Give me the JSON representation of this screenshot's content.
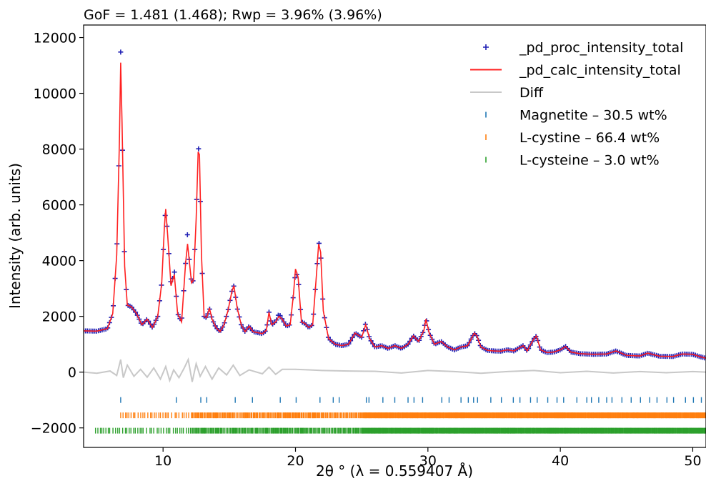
{
  "chart_data": {
    "type": "line",
    "title": "GoF = 1.481 (1.468); Rwp = 3.96% (3.96%)",
    "xlabel": "2θ ° (λ = 0.559407 Å)",
    "ylabel": "Intensity (arb. units)",
    "xlim": [
      4.0,
      51.0
    ],
    "ylim": [
      -2700,
      12450
    ],
    "xticks": [
      10,
      20,
      30,
      40,
      50
    ],
    "yticks": [
      -2000,
      0,
      2000,
      4000,
      6000,
      8000,
      10000,
      12000
    ],
    "ytick_labels": [
      "−2000",
      "0",
      "2000",
      "4000",
      "6000",
      "8000",
      "10000",
      "12000"
    ],
    "grid": false,
    "legend_position": "top-right",
    "colors": {
      "observed": "#1f1fb4",
      "calculated": "#ff2020",
      "difference": "#c8c8c8",
      "magnetite": "#1f77b4",
      "l_cystine": "#ff7f0e",
      "l_cysteine": "#2ca02c"
    },
    "series": [
      {
        "name": "_pd_proc_intensity_total",
        "style": "plus-markers",
        "color": "#1f1fb4",
        "x": [
          4.0,
          5.0,
          5.8,
          6.2,
          6.5,
          6.7,
          6.8,
          6.9,
          7.1,
          7.3,
          7.6,
          8.0,
          8.4,
          8.8,
          9.2,
          9.6,
          9.9,
          10.1,
          10.2,
          10.35,
          10.6,
          10.85,
          11.1,
          11.4,
          11.7,
          11.85,
          12.0,
          12.15,
          12.3,
          12.5,
          12.65,
          12.75,
          12.9,
          13.1,
          13.3,
          13.5,
          13.7,
          14.0,
          14.3,
          14.6,
          14.9,
          15.2,
          15.35,
          15.6,
          15.9,
          16.2,
          16.5,
          16.8,
          17.1,
          17.5,
          17.8,
          18.0,
          18.2,
          18.5,
          18.75,
          19.0,
          19.3,
          19.6,
          19.85,
          20.0,
          20.2,
          20.45,
          20.7,
          21.0,
          21.3,
          21.6,
          21.75,
          21.9,
          22.1,
          22.5,
          23.0,
          23.5,
          24.0,
          24.5,
          25.0,
          25.3,
          25.6,
          26.0,
          26.5,
          27.0,
          27.5,
          28.0,
          28.5,
          28.9,
          29.3,
          29.7,
          29.85,
          30.1,
          30.5,
          31.0,
          31.5,
          32.0,
          32.5,
          33.0,
          33.5,
          33.7,
          34.0,
          34.5,
          35.0,
          35.5,
          36.0,
          36.5,
          37.0,
          37.2,
          37.5,
          38.0,
          38.2,
          38.5,
          39.0,
          39.5,
          40.0,
          40.4,
          40.8,
          41.5,
          42.5,
          43.5,
          44.2,
          45.0,
          46.0,
          46.6,
          47.5,
          48.5,
          49.2,
          50.0,
          50.5,
          51.0
        ],
        "y": [
          1480,
          1470,
          1560,
          2100,
          4200,
          8200,
          11480,
          9000,
          3800,
          2400,
          2350,
          2100,
          1700,
          1900,
          1600,
          2000,
          3200,
          5200,
          5900,
          4900,
          3100,
          3650,
          2100,
          1800,
          3900,
          5000,
          3900,
          3200,
          3300,
          5500,
          8100,
          7800,
          4200,
          2000,
          1950,
          2300,
          1900,
          1600,
          1450,
          1700,
          2200,
          2900,
          3100,
          2300,
          1700,
          1450,
          1650,
          1450,
          1420,
          1380,
          1500,
          2150,
          1700,
          1800,
          2100,
          1900,
          1650,
          1700,
          2800,
          3600,
          3400,
          1800,
          1750,
          1600,
          1700,
          3600,
          4700,
          4300,
          2200,
          1200,
          1000,
          950,
          1000,
          1400,
          1250,
          1750,
          1200,
          900,
          950,
          850,
          950,
          850,
          1000,
          1300,
          1100,
          1500,
          1950,
          1400,
          1000,
          1100,
          900,
          800,
          900,
          950,
          1400,
          1300,
          900,
          780,
          760,
          750,
          800,
          760,
          900,
          950,
          760,
          1200,
          1300,
          800,
          700,
          720,
          800,
          920,
          720,
          660,
          640,
          650,
          760,
          600,
          580,
          680,
          570,
          560,
          650,
          640,
          560,
          500
        ]
      },
      {
        "name": "_pd_calc_intensity_total",
        "style": "line",
        "color": "#ff2020",
        "x": [
          4.0,
          5.0,
          5.8,
          6.2,
          6.5,
          6.7,
          6.8,
          6.9,
          7.1,
          7.3,
          7.6,
          8.0,
          8.4,
          8.8,
          9.2,
          9.6,
          9.9,
          10.1,
          10.2,
          10.35,
          10.6,
          10.85,
          11.1,
          11.4,
          11.7,
          11.85,
          12.0,
          12.15,
          12.3,
          12.5,
          12.65,
          12.75,
          12.9,
          13.1,
          13.3,
          13.5,
          13.7,
          14.0,
          14.3,
          14.6,
          14.9,
          15.2,
          15.35,
          15.6,
          15.9,
          16.2,
          16.5,
          16.8,
          17.1,
          17.5,
          17.8,
          18.0,
          18.2,
          18.5,
          18.75,
          19.0,
          19.3,
          19.6,
          19.85,
          20.0,
          20.2,
          20.45,
          20.7,
          21.0,
          21.3,
          21.6,
          21.75,
          21.9,
          22.1,
          22.5,
          23.0,
          23.5,
          24.0,
          24.5,
          25.0,
          25.3,
          25.6,
          26.0,
          26.5,
          27.0,
          27.5,
          28.0,
          28.5,
          28.9,
          29.3,
          29.7,
          29.85,
          30.1,
          30.5,
          31.0,
          31.5,
          32.0,
          32.5,
          33.0,
          33.5,
          33.7,
          34.0,
          34.5,
          35.0,
          35.5,
          36.0,
          36.5,
          37.0,
          37.2,
          37.5,
          38.0,
          38.2,
          38.5,
          39.0,
          39.5,
          40.0,
          40.4,
          40.8,
          41.5,
          42.5,
          43.5,
          44.2,
          45.0,
          46.0,
          46.6,
          47.5,
          48.5,
          49.2,
          50.0,
          50.5,
          51.0
        ],
        "y": [
          1480,
          1470,
          1560,
          2100,
          4200,
          8200,
          11100,
          9000,
          3800,
          2400,
          2350,
          2100,
          1700,
          1900,
          1600,
          2000,
          3200,
          5200,
          5850,
          4900,
          3100,
          3500,
          2100,
          1800,
          3900,
          4600,
          3900,
          3200,
          3300,
          5500,
          7900,
          7800,
          4200,
          2000,
          1950,
          2300,
          1900,
          1600,
          1450,
          1700,
          2200,
          2900,
          3100,
          2300,
          1700,
          1450,
          1650,
          1450,
          1420,
          1380,
          1500,
          2150,
          1700,
          1800,
          2000,
          1900,
          1650,
          1700,
          2800,
          3700,
          3400,
          1800,
          1750,
          1600,
          1700,
          3600,
          4600,
          4300,
          2200,
          1200,
          1000,
          950,
          1000,
          1400,
          1250,
          1700,
          1200,
          900,
          950,
          850,
          950,
          850,
          1000,
          1300,
          1100,
          1500,
          1900,
          1400,
          1000,
          1100,
          900,
          800,
          900,
          950,
          1400,
          1300,
          900,
          780,
          760,
          750,
          800,
          760,
          900,
          950,
          760,
          1200,
          1300,
          800,
          700,
          720,
          800,
          920,
          720,
          660,
          640,
          650,
          760,
          600,
          580,
          680,
          570,
          560,
          650,
          640,
          560,
          500
        ]
      },
      {
        "name": "Diff",
        "style": "line",
        "color": "#c8c8c8",
        "x": [
          4.0,
          5.0,
          6.0,
          6.5,
          6.8,
          7.0,
          7.3,
          7.8,
          8.3,
          8.8,
          9.3,
          9.8,
          10.2,
          10.5,
          10.8,
          11.2,
          11.6,
          11.9,
          12.2,
          12.5,
          12.8,
          13.2,
          13.7,
          14.2,
          14.8,
          15.3,
          15.8,
          16.5,
          17.5,
          18.0,
          18.5,
          19.0,
          20.0,
          21.0,
          22.0,
          24.0,
          26.0,
          28.0,
          30.0,
          32.0,
          34.0,
          36.0,
          38.0,
          40.0,
          42.0,
          44.0,
          46.0,
          48.0,
          50.0,
          51.0
        ],
        "y": [
          0,
          -40,
          40,
          -120,
          450,
          -200,
          250,
          -150,
          100,
          -180,
          150,
          -250,
          200,
          -300,
          80,
          -200,
          150,
          450,
          -350,
          300,
          -150,
          200,
          -250,
          150,
          -100,
          250,
          -120,
          80,
          -60,
          180,
          -80,
          100,
          100,
          80,
          60,
          40,
          30,
          -30,
          60,
          20,
          -40,
          20,
          60,
          -20,
          30,
          -30,
          20,
          -20,
          20,
          0
        ]
      }
    ],
    "reflection_ticks": [
      {
        "name": "Magnetite – 30.5 wt%",
        "color": "#1f77b4",
        "y": -1000,
        "positions": [
          6.8,
          11.0,
          12.85,
          13.3,
          15.45,
          16.75,
          18.85,
          20.05,
          21.85,
          22.85,
          23.3,
          25.35,
          25.55,
          26.6,
          27.5,
          28.5,
          28.95,
          29.6,
          31.05,
          31.6,
          32.5,
          33.05,
          33.45,
          33.75,
          34.75,
          35.55,
          36.45,
          36.95,
          37.75,
          38.25,
          39.05,
          39.75,
          40.25,
          41.25,
          42.0,
          42.35,
          42.9,
          43.5,
          43.9,
          44.65,
          45.35,
          46.05,
          46.75,
          47.3,
          48.05,
          48.55,
          49.45,
          50.05,
          50.65
        ]
      },
      {
        "name": "L-cystine – 66.4 wt%",
        "color": "#ff7f0e",
        "y": -1550,
        "range": [
          6.8,
          51.0
        ]
      },
      {
        "name": "L-cysteine – 3.0 wt%",
        "color": "#2ca02c",
        "y": -2100,
        "range": [
          4.9,
          51.0
        ]
      }
    ]
  }
}
